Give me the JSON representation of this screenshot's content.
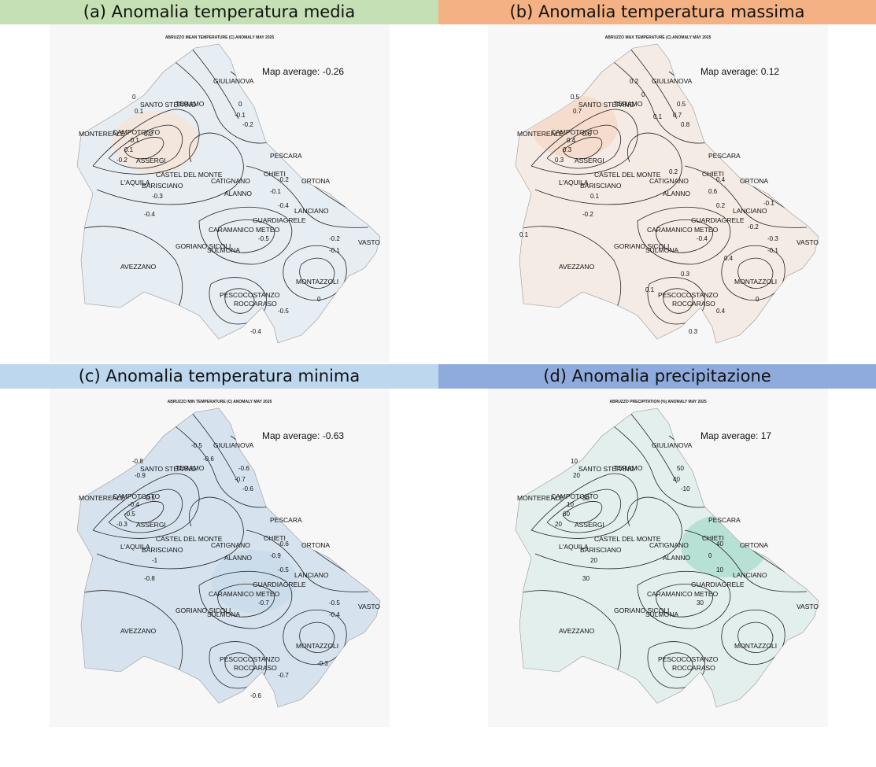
{
  "headers": {
    "a": {
      "text": "(a) Anomalia temperatura media",
      "bg": "#c5e0b4"
    },
    "b": {
      "text": "(b) Anomalia temperatura massima",
      "bg": "#f4b183"
    },
    "c": {
      "text": "(c) Anomalia temperatura minima",
      "bg": "#bdd7ee"
    },
    "d": {
      "text": "(d) Anomalia precipitazione",
      "bg": "#8faadc"
    }
  },
  "panels": {
    "a": {
      "title": "ABRUZZO MEAN TEMPERATURE (C) ANOMALY MAY 2025",
      "average": "Map average: -0.26",
      "fill": "#e6edf3",
      "accent": "#f6e3d6",
      "contour_labels": [
        "0",
        "0.1",
        "0.2",
        "-0.1",
        "-0.2",
        "0.1",
        "0",
        "-0.1",
        "-0.2",
        "-0.1",
        "-0.2",
        "-0.4",
        "-0.3",
        "-0.4",
        "-0.5",
        "-0.2",
        "-0.1",
        "0",
        "-0.5",
        "-0.4"
      ]
    },
    "b": {
      "title": "ABRUZZO MAX TEMPERATURE (C) ANOMALY MAY 2025",
      "average": "Map average: 0.12",
      "fill": "#f5ebe5",
      "accent": "#f5d7c4",
      "contour_labels": [
        "0.5",
        "0.7",
        "0.6",
        "0.4",
        "0.3",
        "0.3",
        "0.5",
        "0.7",
        "0.8",
        "0.6",
        "0.4",
        "0.2",
        "0.1",
        "-0.2",
        "-0.4",
        "-0.3",
        "-0.1",
        "0",
        "0.4",
        "0.3",
        "0.2",
        "0",
        "0.1",
        "0.2",
        "0.4",
        "0.3",
        "0.1",
        "-0.2",
        "-0.1",
        "0.1"
      ]
    },
    "c": {
      "title": "ABRUZZO MIN TEMPERATURE (C) ANOMALY MAY 2025",
      "average": "Map average: -0.63",
      "fill": "#d6e3ee",
      "accent": "#c7dbe9",
      "contour_labels": [
        "-0.8",
        "-0.9",
        "-0.5",
        "-0.4",
        "-0.3",
        "-0.5",
        "-0.6",
        "-0.7",
        "-0.6",
        "-0.9",
        "-0.6",
        "-0.5",
        "-1",
        "-0.8",
        "-0.7",
        "-0.5",
        "-0.4",
        "-0.3",
        "-0.7",
        "-0.6",
        "-0.5",
        "-0.6"
      ]
    },
    "d": {
      "title": "ABRUZZO PRECIPITATION (%) ANOMALY MAY 2025",
      "average": "Map average: 17",
      "fill": "#e3efec",
      "accent": "#a9dccf",
      "contour_labels": [
        "10",
        "20",
        "30",
        "10",
        "20",
        "60",
        "50",
        "40",
        "-10",
        "0",
        "40",
        "10",
        "20",
        "30",
        "30"
      ]
    }
  },
  "place_labels": [
    "GIULIANOVA",
    "SANTO STEFANO",
    "TERAMO",
    "MONTEREALE",
    "CAMPOTOSTO",
    "ASSERGI",
    "PESCARA",
    "CASTEL DEL MONTE",
    "CHIETI",
    "L'AQUILA",
    "BARISCIANO",
    "CATIGNANO",
    "ORTONA",
    "ALANNO",
    "LANCIANO",
    "GUARDIAGRELE",
    "CARAMANICO METEO",
    "GORIANO SICOLI",
    "SULMONA",
    "VASTO",
    "AVEZZANO",
    "MONTAZZOLI",
    "PESCOCOSTANZO",
    "ROCCARASO"
  ]
}
